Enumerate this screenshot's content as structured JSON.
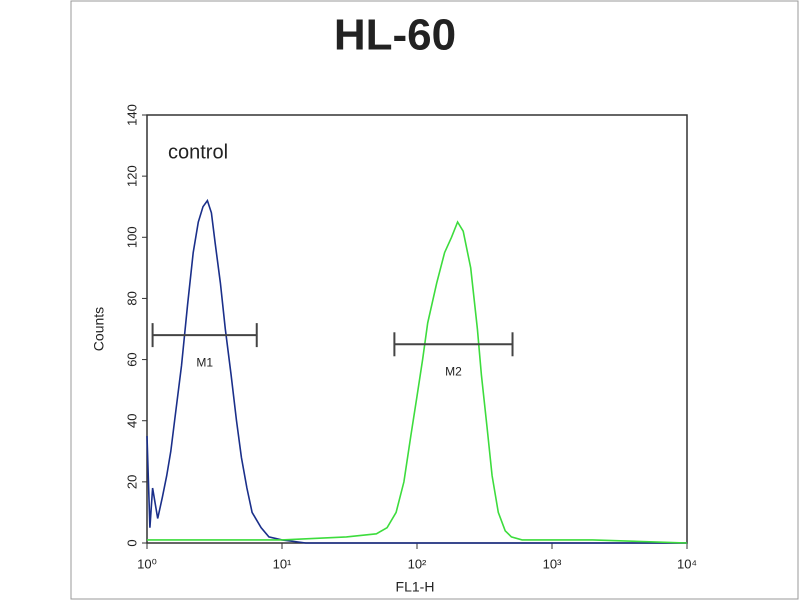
{
  "chart_data": {
    "type": "histogram-overlay",
    "title": "HL-60",
    "annotation": "control",
    "xlabel": "FL1-H",
    "ylabel": "Counts",
    "xscale": "log",
    "xlim": [
      1,
      10000
    ],
    "xticks": [
      {
        "value": 1,
        "label": "10⁰"
      },
      {
        "value": 10,
        "label": "10¹"
      },
      {
        "value": 100,
        "label": "10²"
      },
      {
        "value": 1000,
        "label": "10³"
      },
      {
        "value": 10000,
        "label": "10⁴"
      }
    ],
    "ylim": [
      0,
      140
    ],
    "yticks": [
      0,
      20,
      40,
      60,
      80,
      100,
      120,
      140
    ],
    "series": [
      {
        "name": "control",
        "color": "#1a2f8a",
        "x": [
          1,
          1.05,
          1.1,
          1.2,
          1.3,
          1.4,
          1.5,
          1.6,
          1.8,
          2,
          2.2,
          2.4,
          2.6,
          2.8,
          3,
          3.2,
          3.5,
          3.8,
          4.2,
          4.6,
          5,
          5.5,
          6,
          7,
          8,
          10,
          15,
          30,
          100,
          1000,
          10000
        ],
        "values": [
          35,
          5,
          18,
          8,
          15,
          22,
          30,
          40,
          58,
          78,
          95,
          105,
          110,
          112,
          108,
          98,
          85,
          70,
          55,
          40,
          28,
          18,
          10,
          5,
          2,
          1,
          0,
          0,
          0,
          0,
          0
        ]
      },
      {
        "name": "HL-60",
        "color": "#3ddc3d",
        "x": [
          1,
          10,
          30,
          50,
          60,
          70,
          80,
          90,
          100,
          110,
          120,
          140,
          160,
          180,
          200,
          220,
          250,
          280,
          300,
          330,
          360,
          400,
          450,
          500,
          600,
          1000,
          2000,
          10000
        ],
        "values": [
          1,
          1,
          2,
          3,
          5,
          10,
          20,
          35,
          48,
          60,
          72,
          85,
          95,
          100,
          105,
          102,
          90,
          70,
          55,
          38,
          22,
          10,
          4,
          2,
          1,
          1,
          1,
          0
        ]
      }
    ],
    "markers": [
      {
        "label": "M1",
        "x": [
          1.1,
          6.5
        ],
        "y": 68
      },
      {
        "label": "M2",
        "x": [
          68,
          510
        ],
        "y": 65
      }
    ]
  }
}
